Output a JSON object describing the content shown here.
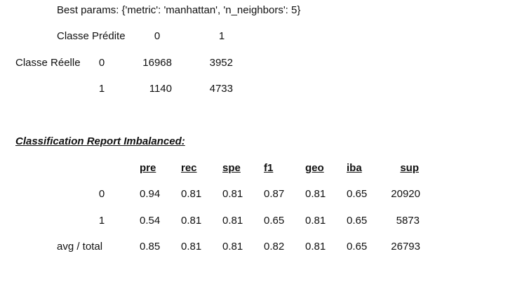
{
  "best_params": "Best params: {'metric': 'manhattan', 'n_neighbors': 5}",
  "confusion": {
    "predicted_label": "Classe Prédite",
    "actual_label": "Classe Réelle",
    "pred_classes": [
      "0",
      "1"
    ],
    "rows": [
      {
        "class": "0",
        "values": [
          "16968",
          "3952"
        ]
      },
      {
        "class": "1",
        "values": [
          "1140",
          "4733"
        ]
      }
    ]
  },
  "report": {
    "title": "Classification Report Imbalanced:",
    "headers": [
      "pre",
      "rec",
      "spe",
      "f1",
      "geo",
      "iba",
      "sup"
    ],
    "rows": [
      {
        "label": "0",
        "values": [
          "0.94",
          "0.81",
          "0.81",
          "0.87",
          "0.81",
          "0.65",
          "20920"
        ]
      },
      {
        "label": "1",
        "values": [
          "0.54",
          "0.81",
          "0.81",
          "0.65",
          "0.81",
          "0.65",
          "5873"
        ]
      },
      {
        "label": "avg / total",
        "values": [
          "0.85",
          "0.81",
          "0.81",
          "0.82",
          "0.81",
          "0.65",
          "26793"
        ]
      }
    ]
  }
}
